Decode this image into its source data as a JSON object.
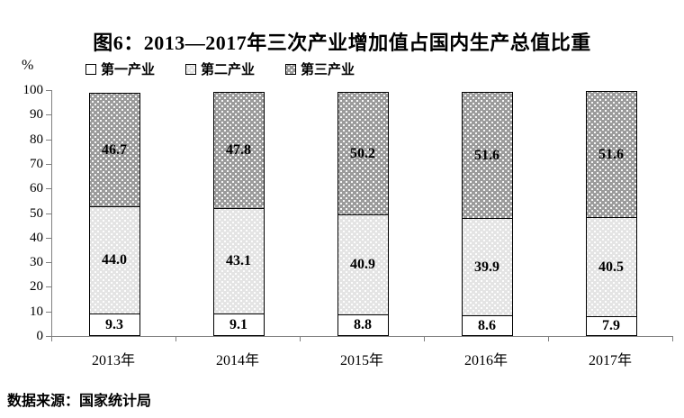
{
  "title": "图6：2013—2017年三次产业增加值占国内生产总值比重",
  "unit_label": "%",
  "source_note": "数据来源：国家统计局",
  "colors": {
    "segment_white": "#ffffff",
    "segment_light_dots": "#e4e4e4",
    "segment_dark_dots": "#9b9b9b",
    "bar_border": "#000000",
    "axis": "#808080",
    "text": "#000000"
  },
  "chart_data": {
    "type": "bar",
    "stacked": true,
    "title": "图6：2013—2017年三次产业增加值占国内生产总值比重",
    "categories": [
      "2013年",
      "2014年",
      "2015年",
      "2016年",
      "2017年"
    ],
    "series": [
      {
        "name": "第一产业",
        "fill": "white",
        "values": [
          9.3,
          9.1,
          8.8,
          8.6,
          7.9
        ]
      },
      {
        "name": "第二产业",
        "fill": "light-dots",
        "values": [
          44.0,
          43.1,
          40.9,
          39.9,
          40.5
        ]
      },
      {
        "name": "第三产业",
        "fill": "dark-dots",
        "values": [
          46.7,
          47.8,
          50.2,
          51.6,
          51.6
        ]
      }
    ],
    "xlabel": "",
    "ylabel": "%",
    "ylim": [
      0,
      100
    ],
    "ytick_step": 10,
    "yticks": [
      0,
      10,
      20,
      30,
      40,
      50,
      60,
      70,
      80,
      90,
      100
    ],
    "grid": false,
    "legend_position": "top-left",
    "data_labels": true
  }
}
